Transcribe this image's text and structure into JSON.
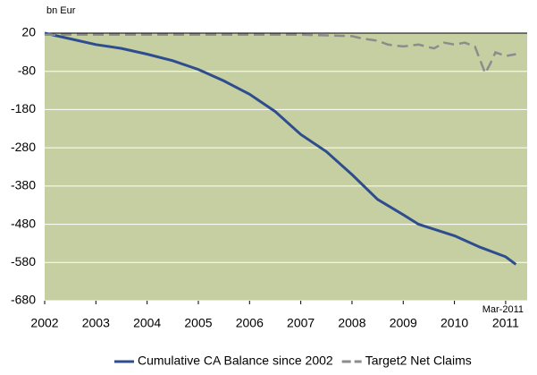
{
  "chart_data": {
    "type": "line",
    "y_unit_label": "bn Eur",
    "annotation": "Mar-2011",
    "xlim": [
      2002,
      2011.42
    ],
    "xticks": [
      2002,
      2003,
      2004,
      2005,
      2006,
      2007,
      2008,
      2009,
      2010,
      2011
    ],
    "ylim": [
      -680,
      20
    ],
    "yticks": [
      20,
      -80,
      -180,
      -280,
      -380,
      -480,
      -580,
      -680
    ],
    "grid": true,
    "background": "#c6cfa1",
    "legend": "bottom",
    "series": [
      {
        "name": "Cumulative CA Balance since 2002",
        "color": "#2e4d8f",
        "dash": false,
        "x": [
          2002,
          2002.5,
          2003,
          2003.5,
          2004,
          2004.5,
          2005,
          2005.5,
          2006,
          2006.5,
          2007,
          2007.5,
          2008,
          2008.5,
          2009,
          2009.3,
          2010,
          2010.5,
          2011,
          2011.2
        ],
        "values": [
          20,
          5,
          -10,
          -20,
          -35,
          -52,
          -75,
          -105,
          -140,
          -185,
          -245,
          -290,
          -350,
          -415,
          -455,
          -480,
          -510,
          -540,
          -565,
          -585
        ]
      },
      {
        "name": "Target2 Net Claims",
        "color": "#8c8c8c",
        "dash": true,
        "x": [
          2002,
          2003,
          2004,
          2005,
          2006,
          2007,
          2008,
          2008.2,
          2008.5,
          2008.7,
          2009,
          2009.3,
          2009.6,
          2009.8,
          2010,
          2010.2,
          2010.4,
          2010.6,
          2010.7,
          2010.8,
          2011,
          2011.2
        ],
        "values": [
          16,
          16,
          16,
          16,
          16,
          16,
          12,
          6,
          0,
          -10,
          -15,
          -10,
          -20,
          -5,
          -10,
          -5,
          -15,
          -85,
          -60,
          -30,
          -40,
          -35
        ]
      }
    ]
  }
}
